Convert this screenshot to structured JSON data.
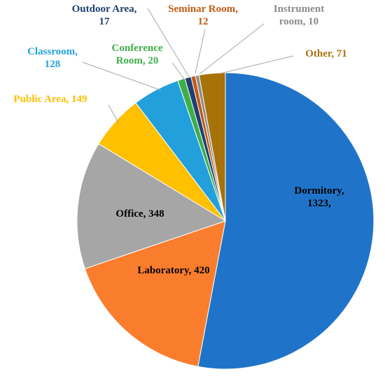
{
  "chart_data": {
    "type": "pie",
    "title": "",
    "slices": [
      {
        "name": "Dormitory",
        "value": 1323,
        "color": "#1f74c9",
        "label_lines": [
          "Dormitory,",
          "1323,"
        ],
        "label_color": "#000000"
      },
      {
        "name": "Laboratory",
        "value": 420,
        "color": "#fa7d2e",
        "label_lines": [
          "Laboratory, 420"
        ],
        "label_color": "#000000"
      },
      {
        "name": "Office",
        "value": 348,
        "color": "#a6a6a6",
        "label_lines": [
          "Office, 348"
        ],
        "label_color": "#000000"
      },
      {
        "name": "Public Area",
        "value": 149,
        "color": "#ffc000",
        "label_lines": [
          "Public Area, 149"
        ],
        "label_color": "#ffc000"
      },
      {
        "name": "Classroom",
        "value": 128,
        "color": "#23a0dc",
        "label_lines": [
          "Classroom,",
          "128"
        ],
        "label_color": "#23a0dc"
      },
      {
        "name": "Conference Room",
        "value": 20,
        "color": "#3fae49",
        "label_lines": [
          "Conference",
          "Room, 20"
        ],
        "label_color": "#3fae49"
      },
      {
        "name": "Outdoor Area",
        "value": 17,
        "color": "#1f3f73",
        "label_lines": [
          "Outdoor Area,",
          "17"
        ],
        "label_color": "#1f3f73"
      },
      {
        "name": "Seminar Room",
        "value": 12,
        "color": "#c55a11",
        "label_lines": [
          "Seminar Room,",
          "12"
        ],
        "label_color": "#c55a11"
      },
      {
        "name": "Instrument room",
        "value": 10,
        "color": "#8c8c8c",
        "label_lines": [
          "Instrument",
          "room, 10"
        ],
        "label_color": "#8c8c8c"
      },
      {
        "name": "Other",
        "value": 71,
        "color": "#a8720a",
        "label_lines": [
          "Other, 71"
        ],
        "label_color": "#a8720a"
      }
    ],
    "start_angle": "12 o'clock",
    "direction": "clockwise",
    "legend": "none"
  }
}
